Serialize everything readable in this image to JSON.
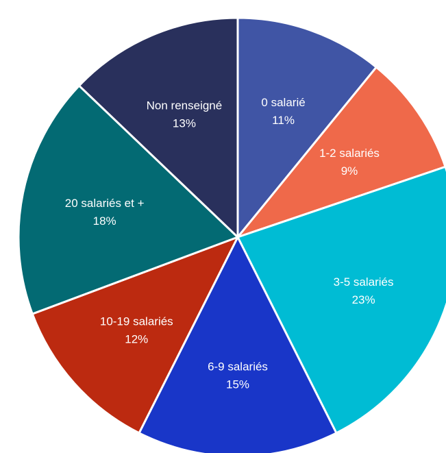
{
  "chart_data": {
    "type": "pie",
    "title": "",
    "start_angle_deg": 0,
    "direction": "clockwise",
    "slices": [
      {
        "label": "0 salarié",
        "value": 11,
        "display": "11%",
        "color": "#4055A5"
      },
      {
        "label": "1-2 salariés",
        "value": 9,
        "display": "9%",
        "color": "#EF694A"
      },
      {
        "label": "3-5 salariés",
        "value": 23,
        "display": "23%",
        "color": "#00BCD4"
      },
      {
        "label": "6-9 salariés",
        "value": 15,
        "display": "15%",
        "color": "#1936C8"
      },
      {
        "label": "10-19 salariés",
        "value": 12,
        "display": "12%",
        "color": "#BC2A10"
      },
      {
        "label": "20 salariés et +",
        "value": 18,
        "display": "18%",
        "color": "#036A73"
      },
      {
        "label": "Non renseigné",
        "value": 13,
        "display": "13%",
        "color": "#29305C"
      }
    ]
  }
}
